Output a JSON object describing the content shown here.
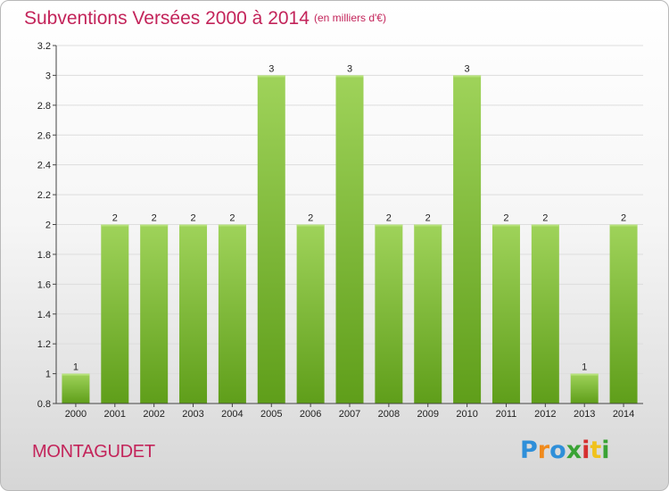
{
  "header": {
    "title": "Subventions Versées 2000 à 2014",
    "subtitle": "(en milliers d'€)"
  },
  "footer": {
    "commune": "MONTAGUDET",
    "logo": "Proxiti"
  },
  "colors": {
    "title": "#c3245a",
    "bar_light": "#9fd35a",
    "bar_dark": "#5f9e1a",
    "logo_letters": [
      "#2f8fd9",
      "#f08a1c",
      "#2f8fd9",
      "#3aa335",
      "#d52f2f",
      "#f0c21c",
      "#3aa335"
    ]
  },
  "chart_data": {
    "type": "bar",
    "categories": [
      "2000",
      "2001",
      "2002",
      "2003",
      "2004",
      "2005",
      "2006",
      "2007",
      "2008",
      "2009",
      "2010",
      "2011",
      "2012",
      "2013",
      "2014"
    ],
    "values": [
      1,
      2,
      2,
      2,
      2,
      3,
      2,
      3,
      2,
      2,
      3,
      2,
      2,
      1,
      2
    ],
    "value_labels": [
      "1",
      "2",
      "2",
      "2",
      "2",
      "3",
      "2",
      "3",
      "2",
      "2",
      "3",
      "2",
      "2",
      "1",
      "2"
    ],
    "ylim": [
      0.8,
      3.2
    ],
    "yticks": [
      0.8,
      1,
      1.2,
      1.4,
      1.6,
      1.8,
      2,
      2.2,
      2.4,
      2.6,
      2.8,
      3,
      3.2
    ],
    "ytick_labels": [
      "0.8",
      "1",
      "1.2",
      "1.4",
      "1.6",
      "1.8",
      "2",
      "2.2",
      "2.4",
      "2.6",
      "2.8",
      "3",
      "3.2"
    ],
    "grid": true,
    "title": "Subventions Versées 2000 à 2014",
    "xlabel": "",
    "ylabel": ""
  }
}
